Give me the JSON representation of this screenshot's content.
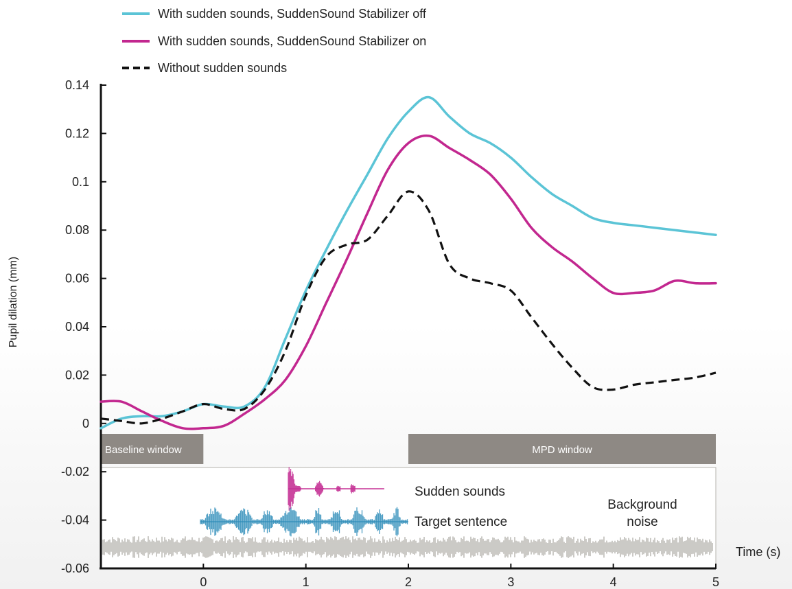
{
  "chart_data": {
    "type": "line",
    "xlabel": "Time (s)",
    "ylabel": "Pupil dilation (mm)",
    "xlim": [
      -1,
      5
    ],
    "ylim": [
      -0.06,
      0.14
    ],
    "x_ticks": [
      "0",
      "1",
      "2",
      "3",
      "4",
      "5"
    ],
    "x_tick_values": [
      0,
      1,
      2,
      3,
      4,
      5
    ],
    "y_ticks": [
      "0.14",
      "0.12",
      "0.1",
      "0.08",
      "0.06",
      "0.04",
      "0.02",
      "0",
      "-0.02",
      "-0.04",
      "-0.06"
    ],
    "y_tick_values": [
      0.14,
      0.12,
      0.1,
      0.08,
      0.06,
      0.04,
      0.02,
      0,
      -0.02,
      -0.04,
      -0.06
    ],
    "legend_position": "top-left",
    "grid": false,
    "series": [
      {
        "name": "With sudden sounds, SuddenSound Stabilizer off",
        "color": "#5bc4d6",
        "style": "solid",
        "points": [
          [
            -1,
            -0.002
          ],
          [
            -0.8,
            0.002
          ],
          [
            -0.6,
            0.003
          ],
          [
            -0.4,
            0.003
          ],
          [
            -0.2,
            0.005
          ],
          [
            0,
            0.008
          ],
          [
            0.2,
            0.007
          ],
          [
            0.4,
            0.007
          ],
          [
            0.6,
            0.015
          ],
          [
            0.8,
            0.035
          ],
          [
            1,
            0.055
          ],
          [
            1.2,
            0.072
          ],
          [
            1.4,
            0.088
          ],
          [
            1.6,
            0.103
          ],
          [
            1.8,
            0.118
          ],
          [
            2,
            0.129
          ],
          [
            2.2,
            0.135
          ],
          [
            2.4,
            0.127
          ],
          [
            2.6,
            0.12
          ],
          [
            2.8,
            0.116
          ],
          [
            3,
            0.11
          ],
          [
            3.2,
            0.102
          ],
          [
            3.4,
            0.095
          ],
          [
            3.6,
            0.09
          ],
          [
            3.8,
            0.085
          ],
          [
            4,
            0.083
          ],
          [
            4.2,
            0.082
          ],
          [
            4.4,
            0.081
          ],
          [
            4.6,
            0.08
          ],
          [
            4.8,
            0.079
          ],
          [
            5,
            0.078
          ]
        ]
      },
      {
        "name": "With sudden sounds, SuddenSound Stabilizer on",
        "color": "#c2278f",
        "style": "solid",
        "points": [
          [
            -1,
            0.009
          ],
          [
            -0.8,
            0.009
          ],
          [
            -0.6,
            0.005
          ],
          [
            -0.4,
            0.001
          ],
          [
            -0.2,
            -0.002
          ],
          [
            0,
            -0.002
          ],
          [
            0.2,
            -0.001
          ],
          [
            0.4,
            0.004
          ],
          [
            0.6,
            0.01
          ],
          [
            0.8,
            0.018
          ],
          [
            1,
            0.032
          ],
          [
            1.2,
            0.05
          ],
          [
            1.4,
            0.068
          ],
          [
            1.6,
            0.087
          ],
          [
            1.8,
            0.105
          ],
          [
            2,
            0.116
          ],
          [
            2.2,
            0.119
          ],
          [
            2.4,
            0.114
          ],
          [
            2.6,
            0.109
          ],
          [
            2.8,
            0.103
          ],
          [
            3,
            0.093
          ],
          [
            3.2,
            0.081
          ],
          [
            3.4,
            0.073
          ],
          [
            3.6,
            0.067
          ],
          [
            3.8,
            0.06
          ],
          [
            4,
            0.054
          ],
          [
            4.2,
            0.054
          ],
          [
            4.4,
            0.055
          ],
          [
            4.6,
            0.059
          ],
          [
            4.8,
            0.058
          ],
          [
            5,
            0.058
          ]
        ]
      },
      {
        "name": "Without sudden sounds",
        "color": "#111111",
        "style": "dashed",
        "points": [
          [
            -1,
            0.002
          ],
          [
            -0.8,
            0.001
          ],
          [
            -0.6,
            0.0
          ],
          [
            -0.4,
            0.002
          ],
          [
            -0.2,
            0.005
          ],
          [
            0,
            0.008
          ],
          [
            0.2,
            0.006
          ],
          [
            0.4,
            0.006
          ],
          [
            0.6,
            0.014
          ],
          [
            0.8,
            0.03
          ],
          [
            1,
            0.053
          ],
          [
            1.2,
            0.069
          ],
          [
            1.4,
            0.074
          ],
          [
            1.6,
            0.076
          ],
          [
            1.8,
            0.086
          ],
          [
            2,
            0.096
          ],
          [
            2.2,
            0.088
          ],
          [
            2.4,
            0.066
          ],
          [
            2.6,
            0.06
          ],
          [
            2.8,
            0.058
          ],
          [
            3,
            0.055
          ],
          [
            3.2,
            0.044
          ],
          [
            3.4,
            0.033
          ],
          [
            3.6,
            0.023
          ],
          [
            3.8,
            0.015
          ],
          [
            4,
            0.014
          ],
          [
            4.2,
            0.016
          ],
          [
            4.4,
            0.017
          ],
          [
            4.6,
            0.018
          ],
          [
            4.8,
            0.019
          ],
          [
            5,
            0.021
          ]
        ]
      }
    ],
    "windows": [
      {
        "label": "Baseline window",
        "x_start": -1,
        "x_end": 0,
        "color": "#8e8984"
      },
      {
        "label": "MPD window",
        "x_start": 2,
        "x_end": 5,
        "color": "#8e8984"
      }
    ],
    "annotations": {
      "sudden_sounds": "Sudden sounds",
      "target_sentence": "Target sentence",
      "background_noise_line1": "Background",
      "background_noise_line2": "noise"
    },
    "waveform_colors": {
      "sudden": "#c2278f",
      "target": "#2d8cb8",
      "noise": "#b5b3ad"
    }
  }
}
